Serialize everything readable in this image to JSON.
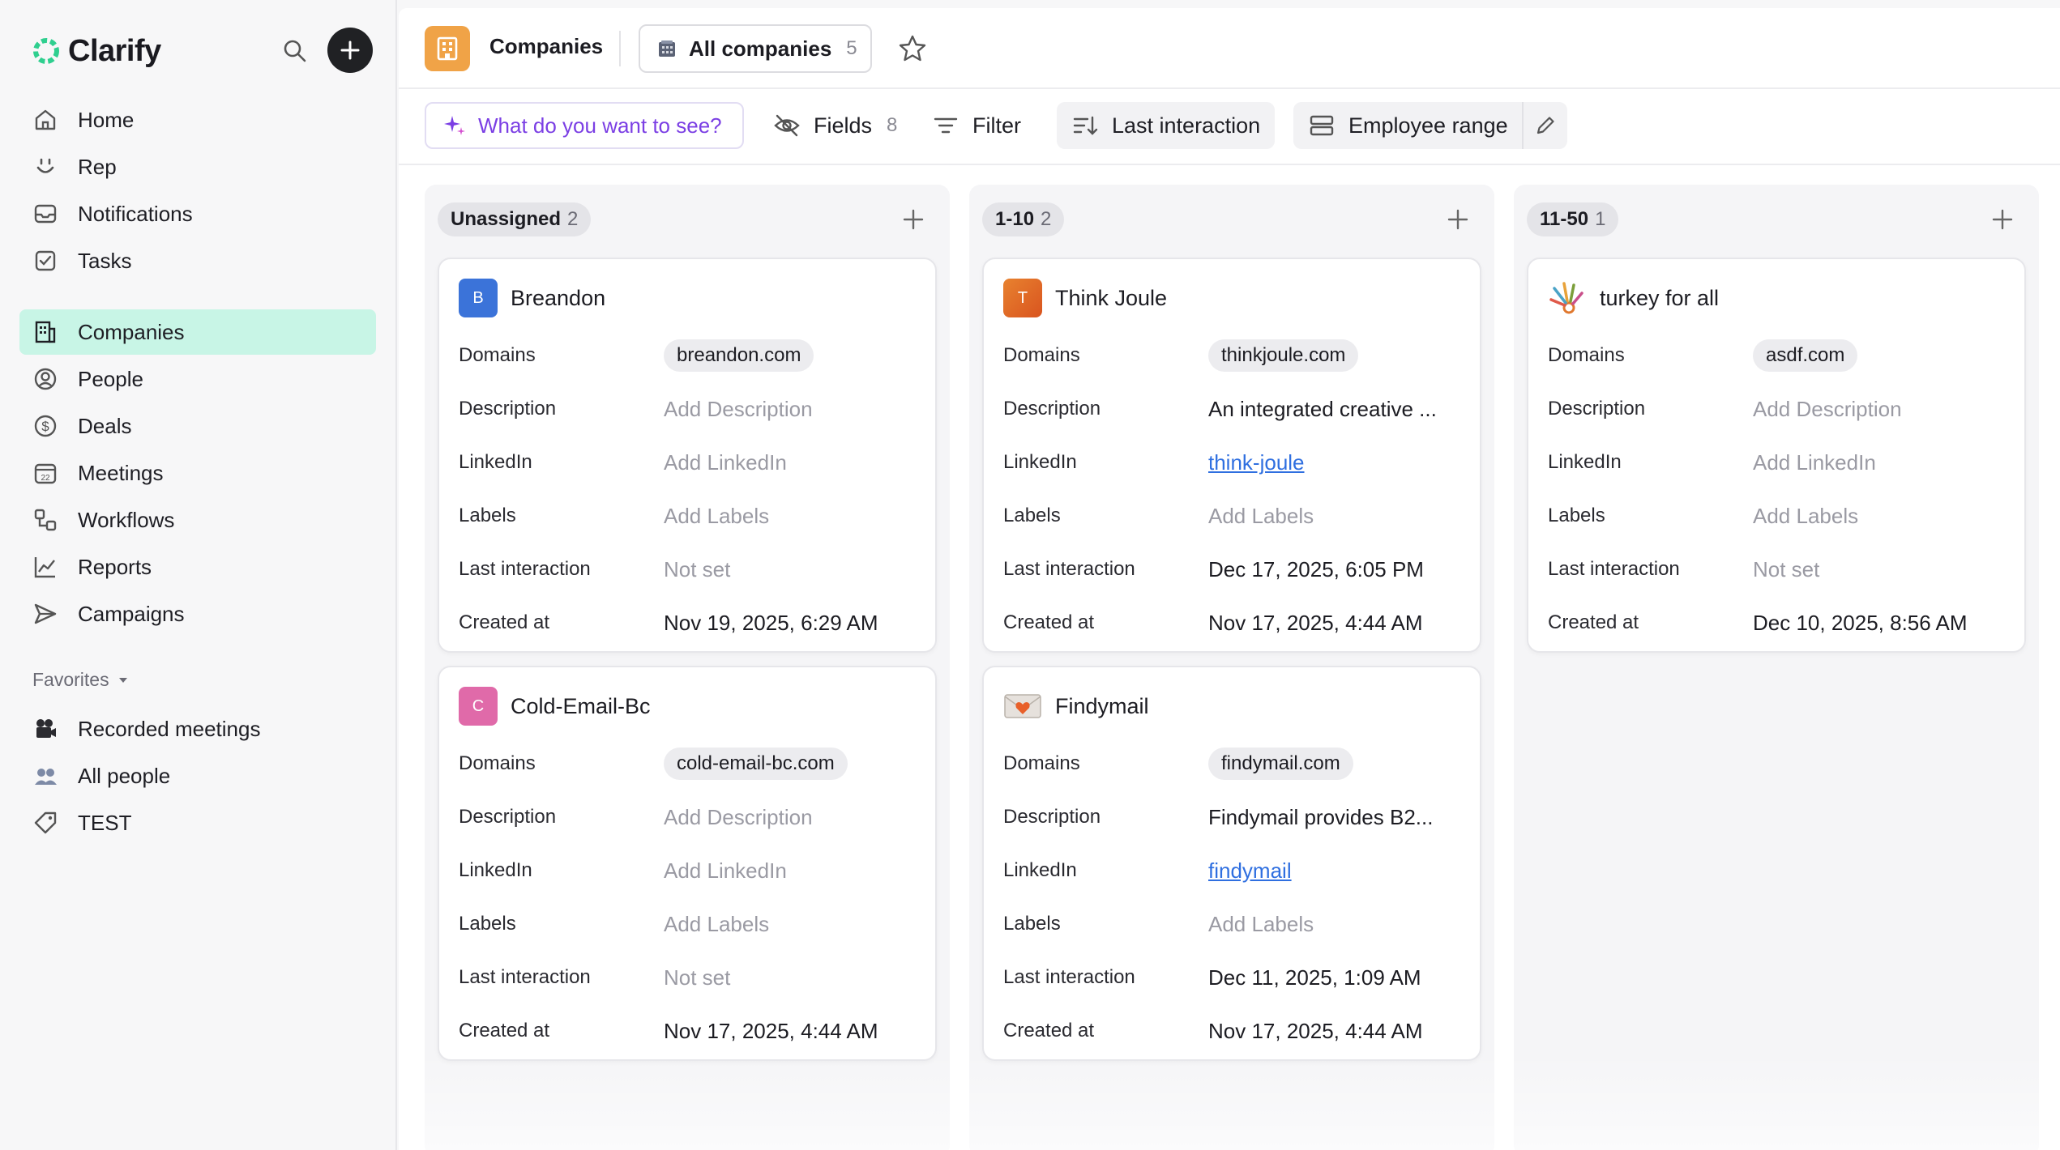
{
  "app": {
    "brand": "Clarify"
  },
  "sidebar": {
    "items": [
      {
        "label": "Home",
        "icon": "home-icon"
      },
      {
        "label": "Rep",
        "icon": "rep-icon"
      },
      {
        "label": "Notifications",
        "icon": "inbox-icon"
      },
      {
        "label": "Tasks",
        "icon": "checkbox-icon"
      },
      {
        "label": "Companies",
        "icon": "building-icon",
        "active": true
      },
      {
        "label": "People",
        "icon": "person-circle-icon"
      },
      {
        "label": "Deals",
        "icon": "dollar-circle-icon"
      },
      {
        "label": "Meetings",
        "icon": "calendar-icon"
      },
      {
        "label": "Workflows",
        "icon": "workflow-icon"
      },
      {
        "label": "Reports",
        "icon": "chart-line-icon"
      },
      {
        "label": "Campaigns",
        "icon": "send-icon"
      }
    ],
    "favorites_label": "Favorites",
    "favorites": [
      {
        "label": "Recorded meetings",
        "icon": "video-camera-icon"
      },
      {
        "label": "All people",
        "icon": "people-icon"
      },
      {
        "label": "TEST",
        "icon": "tag-icon"
      }
    ]
  },
  "header": {
    "title": "Companies",
    "view_label": "All companies",
    "view_count": "5"
  },
  "toolbar": {
    "ask_label": "What do you want to see?",
    "fields_label": "Fields",
    "fields_count": "8",
    "filter_label": "Filter",
    "sort_label": "Last interaction",
    "group_label": "Employee range"
  },
  "columns": [
    {
      "name": "Unassigned",
      "count": "2",
      "cards": [
        {
          "name": "Breandon",
          "avatar": "B",
          "avatar_color": "#3b73d9",
          "domains": "breandon.com",
          "description": "Add Description",
          "linkedin": "Add LinkedIn",
          "labels": "Add Labels",
          "last_interaction": "Not set",
          "created_at": "Nov 19, 2025, 6:29 AM"
        },
        {
          "name": "Cold-Email-Bc",
          "avatar": "C",
          "avatar_color": "#e06aa9",
          "domains": "cold-email-bc.com",
          "description": "Add Description",
          "linkedin": "Add LinkedIn",
          "labels": "Add Labels",
          "last_interaction": "Not set",
          "created_at": "Nov 17, 2025, 4:44 AM"
        }
      ]
    },
    {
      "name": "1-10",
      "count": "2",
      "cards": [
        {
          "name": "Think Joule",
          "avatar": "T",
          "avatar_color": "#e06a2c",
          "domains": "thinkjoule.com",
          "description": "An integrated creative ...",
          "linkedin": "think-joule",
          "labels": "Add Labels",
          "last_interaction": "Dec 17, 2025, 6:05 PM",
          "created_at": "Nov 17, 2025, 4:44 AM"
        },
        {
          "name": "Findymail",
          "avatar": "",
          "avatar_color": "#ffffff",
          "domains": "findymail.com",
          "description": "Findymail provides B2...",
          "linkedin": "findymail",
          "labels": "Add Labels",
          "last_interaction": "Dec 11, 2025, 1:09 AM",
          "created_at": "Nov 17, 2025, 4:44 AM"
        }
      ]
    },
    {
      "name": "11-50",
      "count": "1",
      "cards": [
        {
          "name": "turkey for all",
          "avatar": "",
          "avatar_color": "#ffffff",
          "domains": "asdf.com",
          "description": "Add Description",
          "linkedin": "Add LinkedIn",
          "labels": "Add Labels",
          "last_interaction": "Not set",
          "created_at": "Dec 10, 2025, 8:56 AM"
        }
      ]
    }
  ],
  "field_labels": {
    "domains": "Domains",
    "description": "Description",
    "linkedin": "LinkedIn",
    "labels": "Labels",
    "last_interaction": "Last interaction",
    "created_at": "Created at"
  },
  "colors": {
    "accent_green": "#c8f5e6",
    "ask_purple": "#7b3fe4",
    "link_blue": "#2f6fe0",
    "companies_orange": "#f0a347"
  }
}
